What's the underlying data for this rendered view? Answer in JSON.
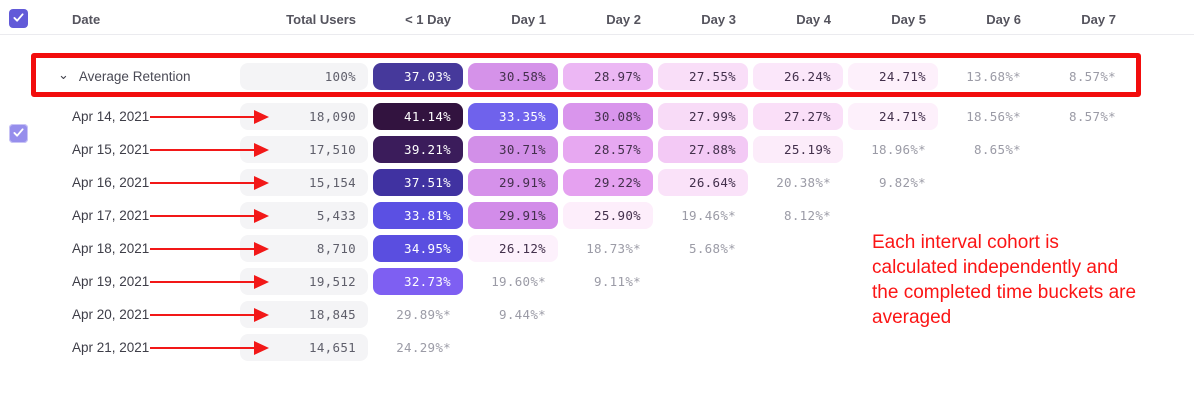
{
  "table": {
    "columns": [
      "Date",
      "Total Users",
      "< 1 Day",
      "Day 1",
      "Day 2",
      "Day 3",
      "Day 4",
      "Day 5",
      "Day 6",
      "Day 7"
    ],
    "average_row": {
      "label": "Average Retention",
      "total_users": "100%",
      "cells": [
        {
          "value": "37.03%",
          "bg": "#46399b",
          "fg": "#ffffff"
        },
        {
          "value": "30.58%",
          "bg": "#d592e9",
          "fg": "#43304c"
        },
        {
          "value": "28.97%",
          "bg": "#ecb7f4",
          "fg": "#43304c"
        },
        {
          "value": "27.55%",
          "bg": "#f9def8",
          "fg": "#43304c"
        },
        {
          "value": "26.24%",
          "bg": "#fbe7fa",
          "fg": "#43304c"
        },
        {
          "value": "24.71%",
          "bg": "#fdf0fb",
          "fg": "#43304c"
        },
        {
          "value": "13.68%*",
          "bg": null,
          "fg": "#9b9ba6"
        },
        {
          "value": "8.57%*",
          "bg": null,
          "fg": "#9b9ba6"
        }
      ]
    },
    "rows": [
      {
        "date": "Apr 14, 2021",
        "total_users": "18,090",
        "cells": [
          {
            "value": "41.14%",
            "bg": "#32133f",
            "fg": "#ffffff"
          },
          {
            "value": "33.35%",
            "bg": "#6f62ec",
            "fg": "#ffffff"
          },
          {
            "value": "30.08%",
            "bg": "#d995ec",
            "fg": "#43304c"
          },
          {
            "value": "27.99%",
            "bg": "#f8dbf7",
            "fg": "#43304c"
          },
          {
            "value": "27.27%",
            "bg": "#fadff8",
            "fg": "#43304c"
          },
          {
            "value": "24.71%",
            "bg": "#fdf0fb",
            "fg": "#43304c"
          },
          {
            "value": "18.56%*",
            "bg": null,
            "fg": "#9b9ba6"
          },
          {
            "value": "8.57%*",
            "bg": null,
            "fg": "#9b9ba6"
          }
        ]
      },
      {
        "date": "Apr 15, 2021",
        "total_users": "17,510",
        "cells": [
          {
            "value": "39.21%",
            "bg": "#3b1c5b",
            "fg": "#ffffff"
          },
          {
            "value": "30.71%",
            "bg": "#d28fe8",
            "fg": "#43304c"
          },
          {
            "value": "28.57%",
            "bg": "#e7a8f1",
            "fg": "#43304c"
          },
          {
            "value": "27.88%",
            "bg": "#f3c9f5",
            "fg": "#43304c"
          },
          {
            "value": "25.19%",
            "bg": "#fcecfa",
            "fg": "#43304c"
          },
          {
            "value": "18.96%*",
            "bg": null,
            "fg": "#9b9ba6"
          },
          {
            "value": "8.65%*",
            "bg": null,
            "fg": "#9b9ba6"
          }
        ]
      },
      {
        "date": "Apr 16, 2021",
        "total_users": "15,154",
        "cells": [
          {
            "value": "37.51%",
            "bg": "#4032a1",
            "fg": "#ffffff"
          },
          {
            "value": "29.91%",
            "bg": "#d591ea",
            "fg": "#43304c"
          },
          {
            "value": "29.22%",
            "bg": "#e5a1f0",
            "fg": "#43304c"
          },
          {
            "value": "26.64%",
            "bg": "#fae2f9",
            "fg": "#43304c"
          },
          {
            "value": "20.38%*",
            "bg": null,
            "fg": "#9b9ba6"
          },
          {
            "value": "9.82%*",
            "bg": null,
            "fg": "#9b9ba6"
          }
        ]
      },
      {
        "date": "Apr 17, 2021",
        "total_users": "5,433",
        "cells": [
          {
            "value": "33.81%",
            "bg": "#5b50e3",
            "fg": "#ffffff"
          },
          {
            "value": "29.91%",
            "bg": "#d28ce9",
            "fg": "#43304c"
          },
          {
            "value": "25.90%",
            "bg": "#fdeefb",
            "fg": "#43304c"
          },
          {
            "value": "19.46%*",
            "bg": null,
            "fg": "#9b9ba6"
          },
          {
            "value": "8.12%*",
            "bg": null,
            "fg": "#9b9ba6"
          }
        ]
      },
      {
        "date": "Apr 18, 2021",
        "total_users": "8,710",
        "cells": [
          {
            "value": "34.95%",
            "bg": "#5a4ee0",
            "fg": "#ffffff"
          },
          {
            "value": "26.12%",
            "bg": "#fdf1fc",
            "fg": "#43304c"
          },
          {
            "value": "18.73%*",
            "bg": null,
            "fg": "#9b9ba6"
          },
          {
            "value": "5.68%*",
            "bg": null,
            "fg": "#9b9ba6"
          }
        ]
      },
      {
        "date": "Apr 19, 2021",
        "total_users": "19,512",
        "cells": [
          {
            "value": "32.73%",
            "bg": "#7e5ff2",
            "fg": "#ffffff"
          },
          {
            "value": "19.60%*",
            "bg": null,
            "fg": "#9b9ba6"
          },
          {
            "value": "9.11%*",
            "bg": null,
            "fg": "#9b9ba6"
          }
        ]
      },
      {
        "date": "Apr 20, 2021",
        "total_users": "18,845",
        "cells": [
          {
            "value": "29.89%*",
            "bg": null,
            "fg": "#9b9ba6"
          },
          {
            "value": "9.44%*",
            "bg": null,
            "fg": "#9b9ba6"
          }
        ]
      },
      {
        "date": "Apr 21, 2021",
        "total_users": "14,651",
        "cells": [
          {
            "value": "24.29%*",
            "bg": null,
            "fg": "#9b9ba6"
          }
        ]
      }
    ]
  },
  "annotations": {
    "note_lines": [
      "Each interval cohort is",
      "calculated independently and",
      "the completed time buckets are",
      "averaged"
    ],
    "note_color": "#fb1515",
    "highlight_color": "#f20d0d",
    "arrow_color": "#f21818"
  },
  "colors": {
    "checkbox_checked": "#625ad8",
    "checkbox_avg": "#968eec",
    "total_cell_bg": "#f4f4f6",
    "incomplete_text": "#9b9ba6"
  }
}
